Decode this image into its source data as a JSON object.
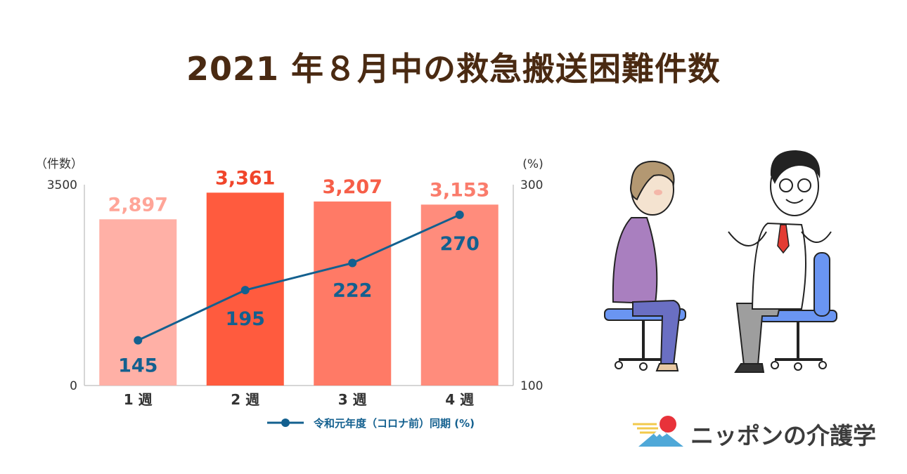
{
  "title": "2021 年８月中の救急搬送困難件数",
  "logo_text": "ニッポンの介護学",
  "chart_data": {
    "type": "bar",
    "categories": [
      "1 週",
      "2 週",
      "3 週",
      "4 週"
    ],
    "series": [
      {
        "values": [
          2897,
          3361,
          3207,
          3153
        ],
        "labels": [
          "2,897",
          "3,361",
          "3,207",
          "3,153"
        ]
      },
      {
        "name": "令和元年度（コロナ前）同期 (%)",
        "type": "line",
        "axis": "right",
        "values": [
          145,
          195,
          222,
          270
        ],
        "labels": [
          "145",
          "195",
          "222",
          "270"
        ]
      }
    ],
    "ylabel": "（件数）",
    "ylabel_right": "(%)",
    "ylim": [
      0,
      3500
    ],
    "ylim_right": [
      100,
      300
    ],
    "y_ticks": [
      "0",
      "3500"
    ],
    "y_ticks_right": [
      "100",
      "300"
    ],
    "legend_position": "bottom-right",
    "grid": false,
    "colors": {
      "bars": [
        "#ffb0a6",
        "#ff5b3e",
        "#ff7a66",
        "#ff8c7c"
      ],
      "bar_labels": [
        "#ffa598",
        "#f0452b",
        "#f65e48",
        "#fa7c6c"
      ],
      "line": "#13608f",
      "axis": "#c8c8c8",
      "text": "#333333"
    }
  }
}
